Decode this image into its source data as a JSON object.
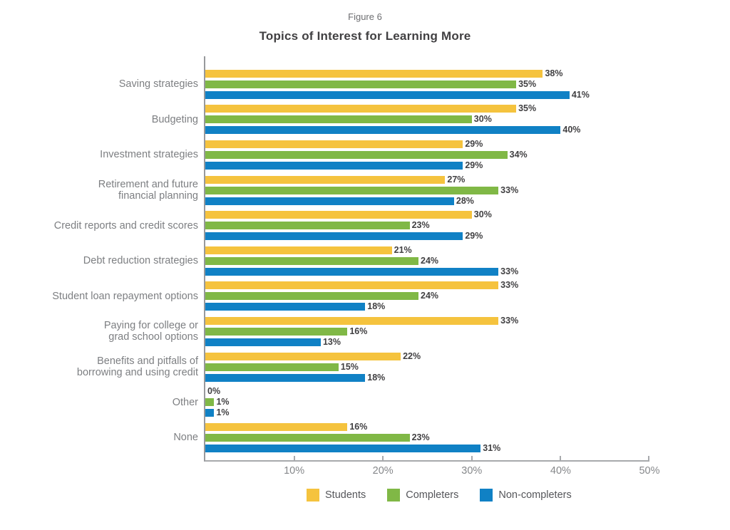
{
  "header": {
    "figure_label": "Figure 6",
    "title": "Topics of Interest for Learning More"
  },
  "chart_data": {
    "type": "bar",
    "orientation": "horizontal",
    "title": "Topics of Interest for Learning More",
    "categories": [
      "Saving strategies",
      "Budgeting",
      "Investment strategies",
      "Retirement and future\nfinancial planning",
      "Credit reports and credit scores",
      "Debt reduction strategies",
      "Student loan repayment options",
      "Paying for college or\ngrad school options",
      "Benefits and pitfalls of\nborrowing and using credit",
      "Other",
      "None"
    ],
    "series": [
      {
        "name": "Students",
        "color": "#F5C33E",
        "values": [
          38,
          35,
          29,
          27,
          30,
          21,
          33,
          33,
          22,
          0,
          16
        ]
      },
      {
        "name": "Completers",
        "color": "#80B846",
        "values": [
          35,
          30,
          34,
          33,
          23,
          24,
          24,
          16,
          15,
          1,
          23
        ]
      },
      {
        "name": "Non-completers",
        "color": "#1081C5",
        "values": [
          41,
          40,
          29,
          28,
          29,
          33,
          18,
          13,
          18,
          1,
          31
        ]
      }
    ],
    "value_suffix": "%",
    "xlim": [
      0,
      50
    ],
    "xticks": [
      "10%",
      "20%",
      "30%",
      "40%",
      "50%"
    ],
    "grid": false,
    "legend_position": "bottom"
  },
  "colors": {
    "axis": "#A7A9AC",
    "value_label": "#414042",
    "category_label": "#7D7F82",
    "tick_label": "#85878A"
  }
}
